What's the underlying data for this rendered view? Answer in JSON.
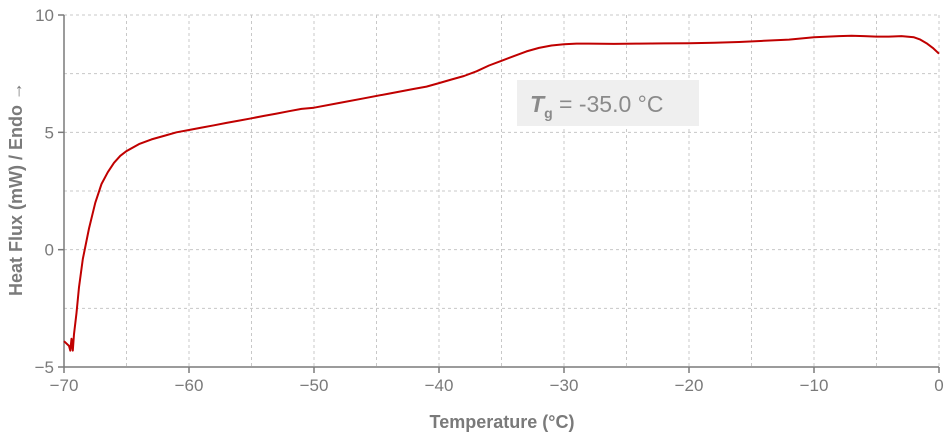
{
  "chart_data": {
    "type": "line",
    "title": "",
    "xlabel": "Temperature (°C)",
    "ylabel": "Heat Flux (mW) / Endo →",
    "xlim": [
      -70,
      0
    ],
    "ylim": [
      -5,
      10
    ],
    "xticks": [
      -70,
      -60,
      -50,
      -40,
      -30,
      -20,
      -10,
      0
    ],
    "yticks": [
      -5,
      0,
      5,
      10
    ],
    "xtick_labels": [
      "−70",
      "−60",
      "−50",
      "−40",
      "−30",
      "−20",
      "−10",
      "0"
    ],
    "ytick_labels": [
      "−5",
      "0",
      "5",
      "10"
    ],
    "grid": true,
    "line_color": "#c00000",
    "annotation": {
      "symbol": "T",
      "subscript": "g",
      "text": " = -35.0 °C"
    },
    "series": [
      {
        "x": [
          -70.0,
          -69.6,
          -69.5,
          -69.4,
          -69.3,
          -69.2,
          -69.0,
          -68.8,
          -68.5,
          -68.0,
          -67.5,
          -67.0,
          -66.5,
          -66.0,
          -65.5,
          -65.0,
          -64.0,
          -63.0,
          -62.0,
          -61.0,
          -60.0,
          -59.0,
          -58.0,
          -57.0,
          -56.0,
          -55.0,
          -54.0,
          -53.0,
          -52.0,
          -51.0,
          -50.0,
          -48.0,
          -46.0,
          -44.0,
          -42.0,
          -41.0,
          -40.0,
          -39.0,
          -38.0,
          -37.0,
          -36.0,
          -35.0,
          -34.0,
          -33.0,
          -32.0,
          -31.0,
          -30.0,
          -29.0,
          -28.0,
          -26.0,
          -24.0,
          -22.0,
          -20.0,
          -18.0,
          -16.0,
          -14.0,
          -12.0,
          -10.0,
          -8.0,
          -7.0,
          -6.0,
          -5.0,
          -4.0,
          -3.0,
          -2.0,
          -1.5,
          -1.0,
          -0.5,
          0.0
        ],
        "y": [
          -3.9,
          -4.1,
          -4.3,
          -3.8,
          -4.3,
          -3.6,
          -2.7,
          -1.6,
          -0.4,
          0.9,
          2.0,
          2.8,
          3.3,
          3.7,
          4.0,
          4.2,
          4.5,
          4.7,
          4.85,
          5.0,
          5.1,
          5.2,
          5.3,
          5.4,
          5.5,
          5.6,
          5.7,
          5.8,
          5.9,
          6.0,
          6.05,
          6.25,
          6.45,
          6.65,
          6.85,
          6.95,
          7.1,
          7.25,
          7.4,
          7.6,
          7.85,
          8.05,
          8.25,
          8.45,
          8.6,
          8.7,
          8.75,
          8.78,
          8.78,
          8.77,
          8.78,
          8.79,
          8.8,
          8.82,
          8.85,
          8.9,
          8.95,
          9.05,
          9.1,
          9.12,
          9.1,
          9.08,
          9.08,
          9.1,
          9.05,
          8.95,
          8.8,
          8.6,
          8.35
        ]
      }
    ]
  }
}
